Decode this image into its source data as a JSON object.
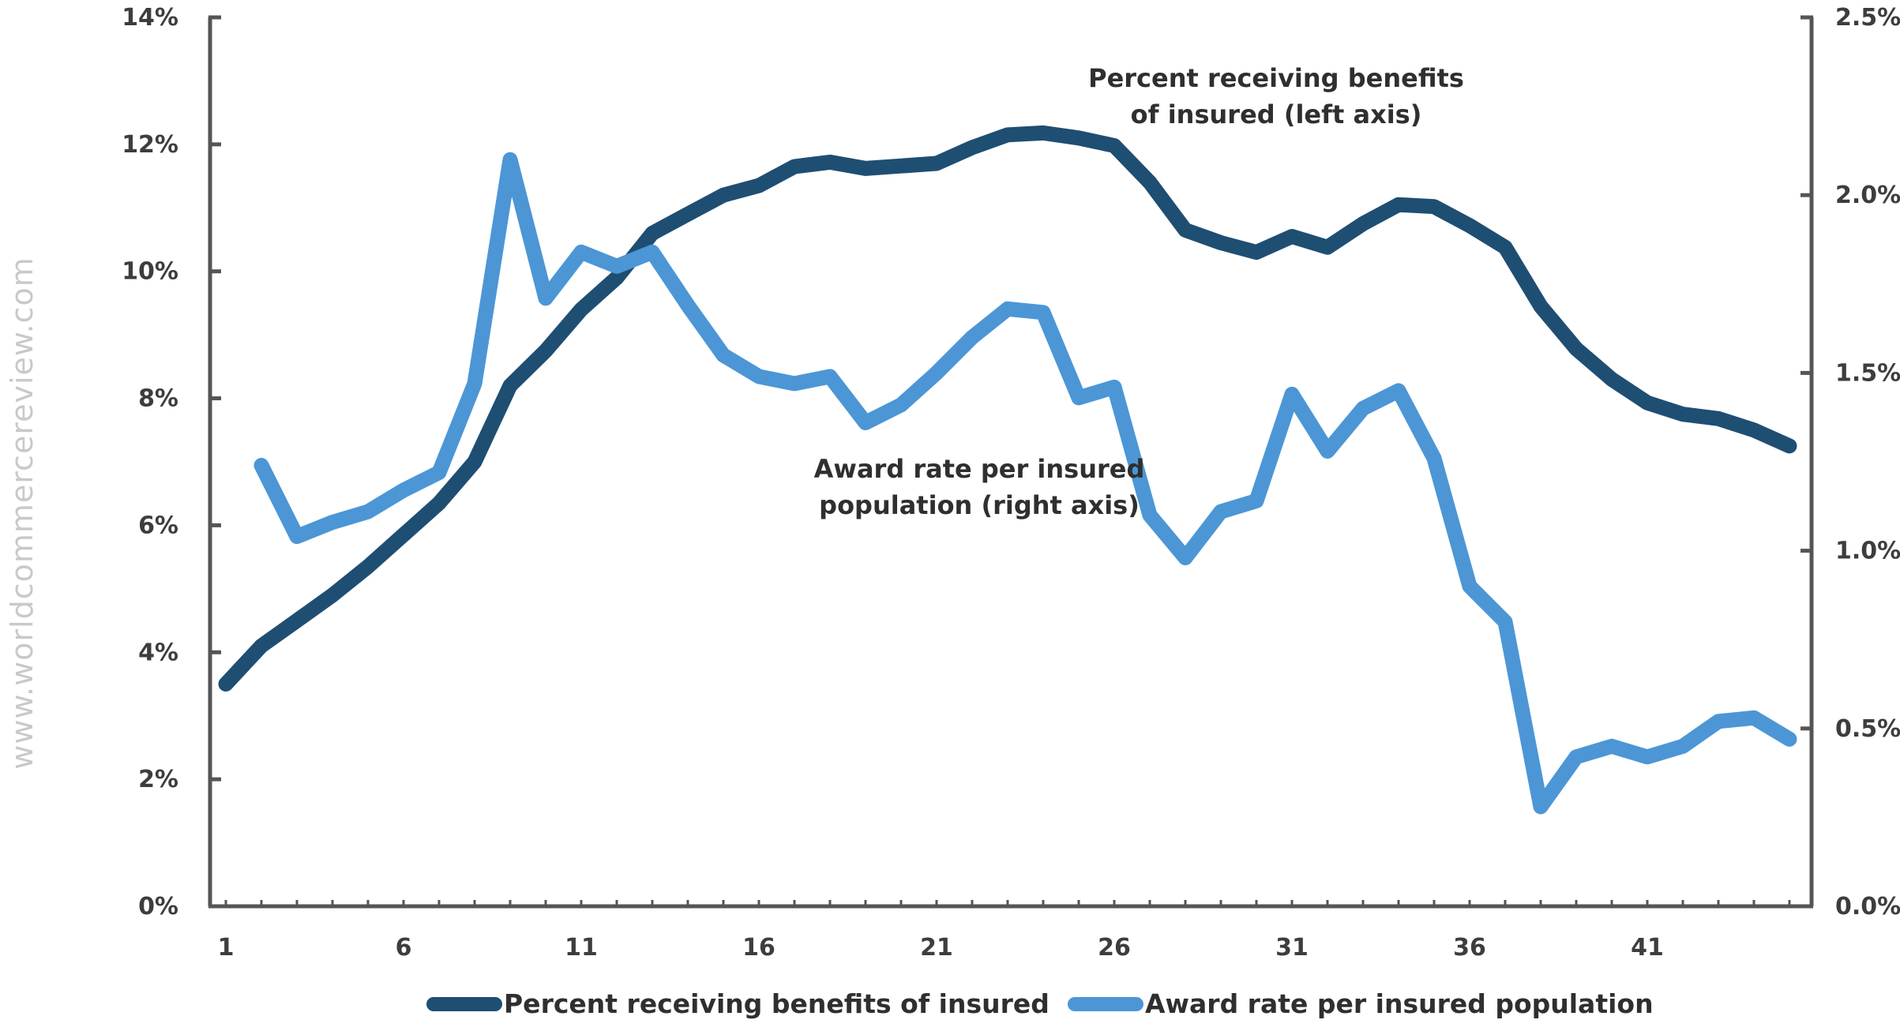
{
  "watermark": "www.worldcommercereview.com",
  "chart_data": {
    "type": "line",
    "left_axis": {
      "ylim": [
        0,
        14
      ],
      "ticks": [
        "0%",
        "2%",
        "4%",
        "6%",
        "8%",
        "10%",
        "12%",
        "14%"
      ],
      "tick_values": [
        0,
        2,
        4,
        6,
        8,
        10,
        12,
        14
      ]
    },
    "right_axis": {
      "ylim": [
        0,
        2.5
      ],
      "ticks": [
        "0.0%",
        "0.5%",
        "1.0%",
        "1.5%",
        "2.0%",
        "2.5%"
      ],
      "tick_values": [
        0,
        0.5,
        1.0,
        1.5,
        2.0,
        2.5
      ]
    },
    "x_axis": {
      "xlim": [
        1,
        45
      ],
      "ticks": [
        "1",
        "6",
        "11",
        "16",
        "21",
        "26",
        "31",
        "36",
        "41"
      ],
      "tick_values": [
        1,
        6,
        11,
        16,
        21,
        26,
        31,
        36,
        41
      ]
    },
    "series": [
      {
        "name": "Percent receiving benefits of insured",
        "axis": "left",
        "color": "#1f4e73",
        "x": [
          1,
          2,
          3,
          4,
          5,
          6,
          7,
          8,
          9,
          10,
          11,
          12,
          13,
          14,
          15,
          16,
          17,
          18,
          19,
          20,
          21,
          22,
          23,
          24,
          25,
          26,
          27,
          28,
          29,
          30,
          31,
          32,
          33,
          34,
          35,
          36,
          37,
          38,
          39,
          40,
          41,
          42,
          43,
          44,
          45
        ],
        "values": [
          3.5,
          4.1,
          4.5,
          4.9,
          5.35,
          5.85,
          6.35,
          7.0,
          8.2,
          8.75,
          9.4,
          9.9,
          10.6,
          10.9,
          11.2,
          11.35,
          11.65,
          11.72,
          11.62,
          11.66,
          11.7,
          11.95,
          12.15,
          12.18,
          12.1,
          11.98,
          11.4,
          10.65,
          10.45,
          10.3,
          10.55,
          10.38,
          10.75,
          11.05,
          11.02,
          10.72,
          10.38,
          9.45,
          8.78,
          8.3,
          7.93,
          7.75,
          7.68,
          7.5,
          7.25
        ]
      },
      {
        "name": "Award rate per insured population",
        "axis": "right",
        "color": "#4c96d6",
        "x": [
          2,
          3,
          4,
          5,
          6,
          7,
          8,
          9,
          10,
          11,
          12,
          13,
          14,
          15,
          16,
          17,
          18,
          19,
          20,
          21,
          22,
          23,
          24,
          25,
          26,
          27,
          28,
          29,
          30,
          31,
          32,
          33,
          34,
          35,
          36,
          37,
          38,
          39,
          40,
          41,
          42,
          43,
          44,
          45
        ],
        "values": [
          1.24,
          1.04,
          1.08,
          1.11,
          1.17,
          1.22,
          1.47,
          2.1,
          1.71,
          1.84,
          1.8,
          1.84,
          1.69,
          1.55,
          1.49,
          1.47,
          1.49,
          1.36,
          1.41,
          1.5,
          1.6,
          1.68,
          1.67,
          1.43,
          1.46,
          1.1,
          0.98,
          1.11,
          1.14,
          1.44,
          1.28,
          1.4,
          1.45,
          1.26,
          0.9,
          0.8,
          0.28,
          0.42,
          0.45,
          0.42,
          0.45,
          0.52,
          0.53,
          0.47
        ]
      }
    ],
    "annotations": [
      {
        "lines": [
          "Percent receiving  benefits",
          "of insured  (left axis)"
        ],
        "series": 0
      },
      {
        "lines": [
          "Award rate  per insured",
          "population (right axis)"
        ],
        "series": 1
      }
    ],
    "legend": {
      "position": "bottom",
      "items": [
        "Percent receiving  benefits of insured",
        "Award rate  per insured population"
      ]
    }
  }
}
